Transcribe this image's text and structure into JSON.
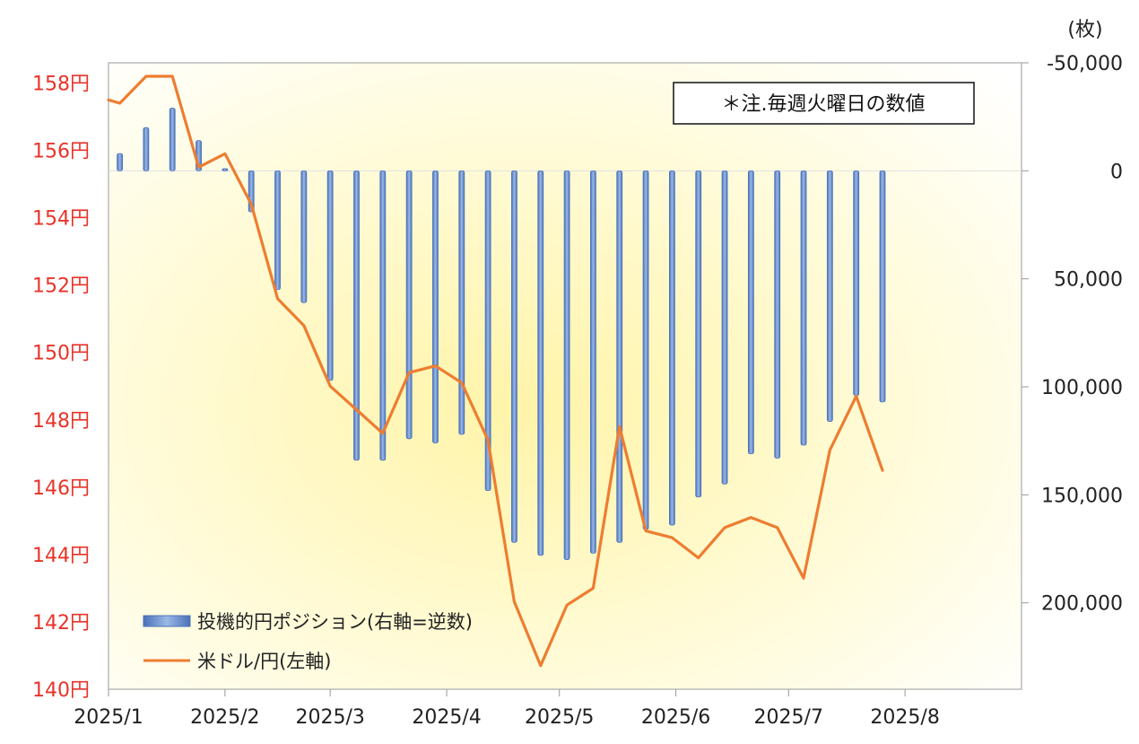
{
  "chart_data": {
    "type": "bar+line",
    "title": "",
    "note": "＊注.毎週火曜日の数値",
    "right_axis_unit": "(枚)",
    "left_axis": {
      "ylim": [
        140,
        158.6
      ],
      "ticks": [
        140,
        142,
        144,
        146,
        148,
        150,
        152,
        154,
        156,
        158
      ],
      "tick_labels": [
        "140円",
        "142円",
        "144円",
        "146円",
        "148円",
        "150円",
        "152円",
        "154円",
        "156円",
        "158円"
      ]
    },
    "right_axis": {
      "inverted": true,
      "ylim": [
        -50000,
        240000
      ],
      "ticks": [
        -50000,
        0,
        50000,
        100000,
        150000,
        200000
      ],
      "tick_labels": [
        "-50,000",
        "0",
        "50,000",
        "100,000",
        "150,000",
        "200,000"
      ]
    },
    "x_axis": {
      "ticks": [
        "2025-01-01",
        "2025-02-01",
        "2025-03-01",
        "2025-04-01",
        "2025-05-01",
        "2025-06-01",
        "2025-07-01",
        "2025-08-01"
      ],
      "tick_labels": [
        "2025/1",
        "2025/2",
        "2025/3",
        "2025/4",
        "2025/5",
        "2025/6",
        "2025/7",
        "2025/8"
      ],
      "range": [
        "2025-01-01",
        "2025-09-01"
      ]
    },
    "series": [
      {
        "name": "投機的円ポジション(右軸=逆数)",
        "type": "bar",
        "axis": "right",
        "color": "#6f95cf",
        "x": [
          "2025-01-04",
          "2025-01-11",
          "2025-01-18",
          "2025-01-25",
          "2025-02-01",
          "2025-02-08",
          "2025-02-15",
          "2025-02-22",
          "2025-03-01",
          "2025-03-08",
          "2025-03-15",
          "2025-03-22",
          "2025-03-29",
          "2025-04-05",
          "2025-04-12",
          "2025-04-19",
          "2025-04-26",
          "2025-05-03",
          "2025-05-10",
          "2025-05-17",
          "2025-05-24",
          "2025-05-31",
          "2025-06-07",
          "2025-06-14",
          "2025-06-21",
          "2025-06-28",
          "2025-07-05",
          "2025-07-12",
          "2025-07-19",
          "2025-07-26"
        ],
        "values": [
          -8000,
          -20000,
          -29000,
          -14000,
          -1000,
          19000,
          55000,
          61000,
          97000,
          134000,
          134000,
          124000,
          126000,
          122000,
          148000,
          172000,
          178000,
          180000,
          177000,
          172000,
          166000,
          164000,
          151000,
          145000,
          131000,
          133000,
          127000,
          116000,
          104000,
          107000
        ]
      },
      {
        "name": "米ドル/円(左軸)",
        "type": "line",
        "axis": "left",
        "color": "#ed7d31",
        "x": [
          "2025-01-01",
          "2025-01-04",
          "2025-01-11",
          "2025-01-18",
          "2025-01-25",
          "2025-02-01",
          "2025-02-08",
          "2025-02-15",
          "2025-02-22",
          "2025-03-01",
          "2025-03-08",
          "2025-03-15",
          "2025-03-22",
          "2025-03-29",
          "2025-04-05",
          "2025-04-12",
          "2025-04-19",
          "2025-04-26",
          "2025-05-03",
          "2025-05-10",
          "2025-05-17",
          "2025-05-24",
          "2025-05-31",
          "2025-06-07",
          "2025-06-14",
          "2025-06-21",
          "2025-06-28",
          "2025-07-05",
          "2025-07-12",
          "2025-07-19",
          "2025-07-26"
        ],
        "values": [
          157.5,
          157.4,
          158.2,
          158.2,
          155.5,
          155.9,
          154.4,
          151.6,
          150.8,
          149.0,
          148.3,
          147.6,
          149.4,
          149.6,
          149.1,
          147.4,
          142.6,
          140.7,
          142.5,
          143.0,
          147.8,
          144.7,
          144.5,
          143.9,
          144.8,
          145.1,
          144.8,
          143.3,
          147.1,
          148.7,
          146.5
        ]
      }
    ],
    "legend": {
      "position": "bottom-left",
      "inside": true
    },
    "grid": false
  }
}
